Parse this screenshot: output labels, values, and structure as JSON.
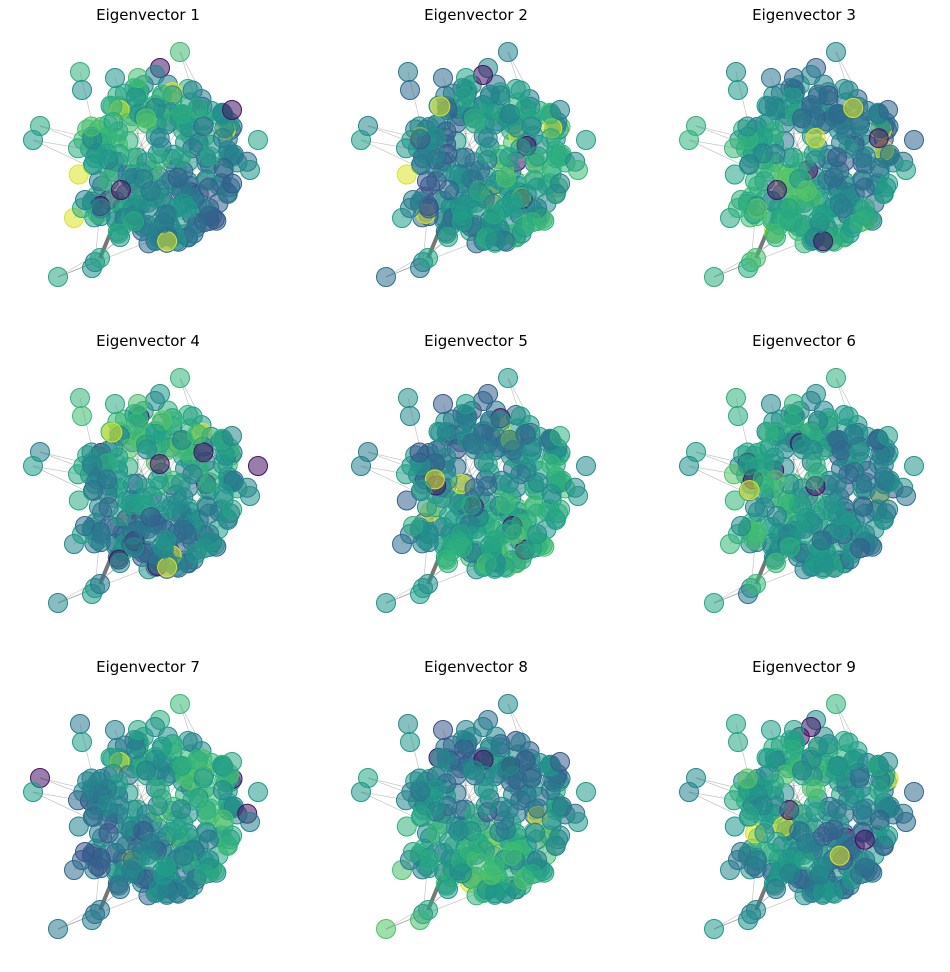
{
  "figure": {
    "panels": [
      {
        "title": "Eigenvector 1",
        "seed": 1
      },
      {
        "title": "Eigenvector 2",
        "seed": 2
      },
      {
        "title": "Eigenvector 3",
        "seed": 3
      },
      {
        "title": "Eigenvector 4",
        "seed": 4
      },
      {
        "title": "Eigenvector 5",
        "seed": 5
      },
      {
        "title": "Eigenvector 6",
        "seed": 6
      },
      {
        "title": "Eigenvector 7",
        "seed": 7
      },
      {
        "title": "Eigenvector 8",
        "seed": 8
      },
      {
        "title": "Eigenvector 9",
        "seed": 9
      }
    ],
    "colormap": "viridis",
    "edge_color": "#555555"
  }
}
